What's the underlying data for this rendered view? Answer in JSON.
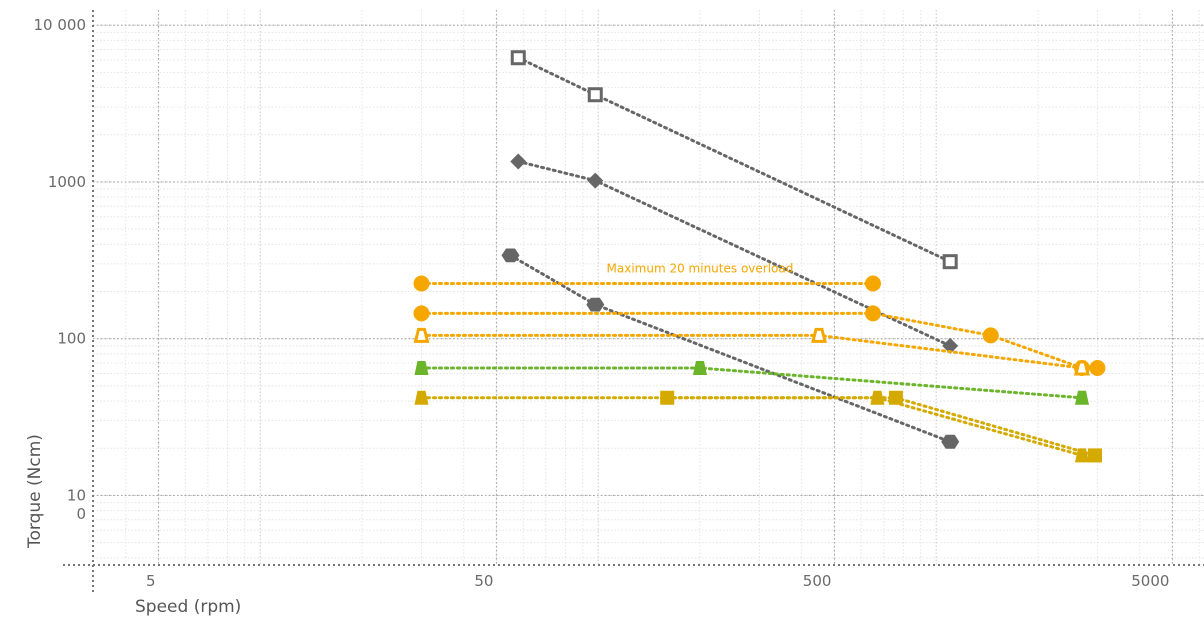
{
  "chart_data": {
    "type": "scatter",
    "title": "",
    "xlabel": "Speed (rpm)",
    "ylabel": "Torque (Ncm)",
    "x_scale": "log",
    "y_scale": "log",
    "xlim": [
      3.2,
      6200
    ],
    "ylim": [
      3.6,
      12500
    ],
    "grid": true,
    "x_tick_labels": [
      {
        "value": 5,
        "label": "5"
      },
      {
        "value": 50,
        "label": "50"
      },
      {
        "value": 500,
        "label": "500"
      },
      {
        "value": 5000,
        "label": "5000"
      }
    ],
    "y_tick_labels": [
      {
        "value": 10000,
        "label": "10 000"
      },
      {
        "value": 1000,
        "label": "1000"
      },
      {
        "value": 100,
        "label": "100"
      },
      {
        "value": 10,
        "label": "10"
      }
    ],
    "y_extra_label": {
      "value": 7.6,
      "label": "0"
    },
    "annotation": {
      "text": "Maximum 20 minutes overload",
      "color": "#f5a700",
      "x": 200,
      "y": 235
    },
    "series": [
      {
        "marker": "open-square",
        "color": "#666666",
        "points": [
          [
            58,
            6200
          ],
          [
            98,
            3600
          ],
          [
            1100,
            310
          ]
        ]
      },
      {
        "marker": "diamond",
        "color": "#666666",
        "points": [
          [
            58,
            1350
          ],
          [
            98,
            1020
          ],
          [
            1100,
            90
          ]
        ]
      },
      {
        "marker": "hexagon",
        "color": "#666666",
        "points": [
          [
            55,
            340
          ],
          [
            98,
            165
          ],
          [
            1100,
            22
          ]
        ]
      },
      {
        "marker": "circle",
        "color": "#f5a700",
        "points": [
          [
            30,
            225
          ],
          [
            650,
            225
          ]
        ]
      },
      {
        "marker": "circle",
        "color": "#f5a700",
        "points": [
          [
            30,
            145
          ],
          [
            650,
            145
          ],
          [
            1450,
            105
          ],
          [
            2700,
            65
          ],
          [
            3000,
            65
          ]
        ]
      },
      {
        "marker": "open-triangle",
        "color": "#f5a700",
        "points": [
          [
            30,
            105
          ],
          [
            450,
            105
          ],
          [
            2700,
            65
          ]
        ]
      },
      {
        "marker": "triangle",
        "color": "#6bb52a",
        "points": [
          [
            30,
            65
          ],
          [
            200,
            65
          ],
          [
            2700,
            42
          ]
        ]
      },
      {
        "marker": "triangle",
        "color": "#d4aa00",
        "points": [
          [
            30,
            42
          ],
          [
            670,
            42
          ],
          [
            2700,
            18
          ]
        ]
      },
      {
        "marker": "square",
        "color": "#d4aa00",
        "points": [
          [
            160,
            42
          ],
          [
            760,
            42
          ],
          [
            2950,
            18
          ]
        ]
      }
    ]
  }
}
